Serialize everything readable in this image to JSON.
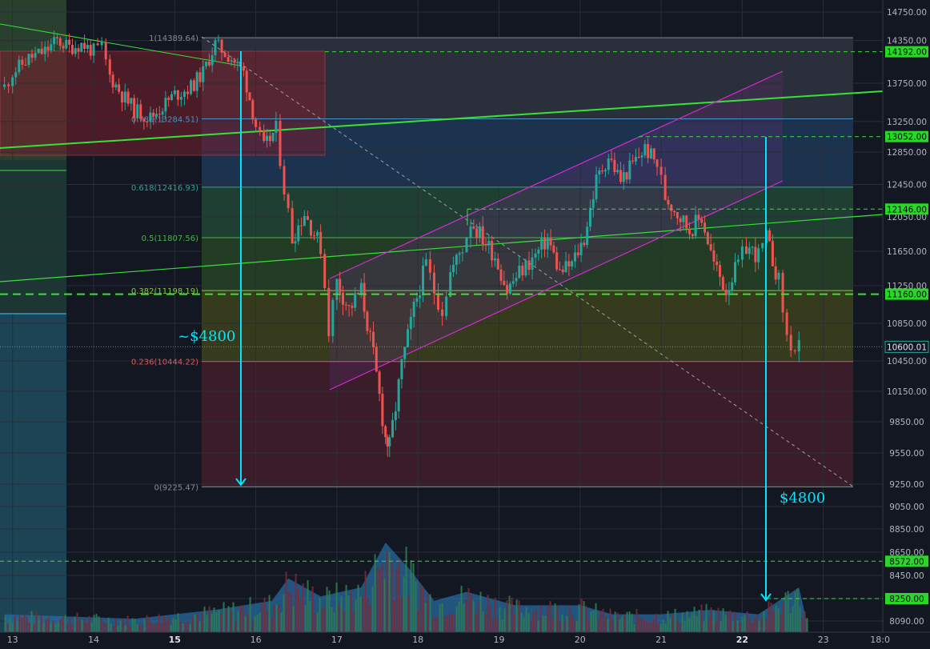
{
  "chart_data": {
    "type": "candlestick",
    "title": "",
    "x_labels": [
      "13",
      "14",
      "15",
      "16",
      "17",
      "18",
      "19",
      "20",
      "21",
      "22",
      "23",
      "18:0"
    ],
    "y_ticks": [
      14750,
      14350,
      13750,
      13250,
      12850,
      12450,
      12050,
      11650,
      11250,
      10850,
      10450,
      10150,
      9850,
      9550,
      9250,
      9050,
      8850,
      8650,
      8450,
      8250,
      8090
    ],
    "ylim": [
      8000,
      14900
    ],
    "fib_levels": [
      {
        "ratio": "1",
        "price": 14389.64,
        "label": "1(14389.64)"
      },
      {
        "ratio": "0.786",
        "price": 13284.51,
        "label": "0.786(13284.51)"
      },
      {
        "ratio": "0.618",
        "price": 12416.93,
        "label": "0.618(12416.93)"
      },
      {
        "ratio": "0.5",
        "price": 11807.56,
        "label": "0.5(11807.56)"
      },
      {
        "ratio": "0.382",
        "price": 11198.19,
        "label": "0.382(11198.19)"
      },
      {
        "ratio": "0.236",
        "price": 10444.22,
        "label": "0.236(10444.22)"
      },
      {
        "ratio": "0",
        "price": 9225.47,
        "label": "0(9225.47)"
      }
    ],
    "price_markers": [
      {
        "price": 14192.0,
        "label": "14192.00"
      },
      {
        "price": 13052.0,
        "label": "13052.00"
      },
      {
        "price": 12146.0,
        "label": "12146.00"
      },
      {
        "price": 11160.0,
        "label": "11160.00"
      },
      {
        "price": 10600.01,
        "label": "10600.01"
      },
      {
        "price": 8572.0,
        "label": "8572.00"
      },
      {
        "price": 8250.0,
        "label": "8250.00"
      }
    ],
    "annotations": [
      "~$4800",
      "$4800"
    ],
    "legend": "none",
    "grid": true,
    "close_path_day_price": [
      [
        12.9,
        13700
      ],
      [
        13.0,
        13900
      ],
      [
        13.2,
        14100
      ],
      [
        13.4,
        14200
      ],
      [
        13.55,
        14350
      ],
      [
        13.7,
        14250
      ],
      [
        13.85,
        14300
      ],
      [
        14.0,
        14200
      ],
      [
        14.1,
        14250
      ],
      [
        14.2,
        13850
      ],
      [
        14.35,
        13600
      ],
      [
        14.5,
        13400
      ],
      [
        14.7,
        13300
      ],
      [
        14.85,
        13450
      ],
      [
        15.0,
        13600
      ],
      [
        15.2,
        13700
      ],
      [
        15.35,
        13900
      ],
      [
        15.5,
        14300
      ],
      [
        15.7,
        14100
      ],
      [
        15.85,
        13900
      ],
      [
        16.0,
        13200
      ],
      [
        16.1,
        12900
      ],
      [
        16.25,
        13150
      ],
      [
        16.35,
        12400
      ],
      [
        16.45,
        11800
      ],
      [
        16.6,
        12100
      ],
      [
        16.8,
        11700
      ],
      [
        16.9,
        10800
      ],
      [
        17.0,
        11300
      ],
      [
        17.15,
        11000
      ],
      [
        17.3,
        11200
      ],
      [
        17.45,
        10500
      ],
      [
        17.6,
        9700
      ],
      [
        17.65,
        9600
      ],
      [
        17.8,
        10400
      ],
      [
        17.95,
        11000
      ],
      [
        18.1,
        11500
      ],
      [
        18.2,
        11200
      ],
      [
        18.3,
        11000
      ],
      [
        18.4,
        11400
      ],
      [
        18.55,
        11700
      ],
      [
        18.65,
        12000
      ],
      [
        18.8,
        11800
      ],
      [
        18.95,
        11600
      ],
      [
        19.1,
        11200
      ],
      [
        19.25,
        11400
      ],
      [
        19.45,
        11600
      ],
      [
        19.6,
        11800
      ],
      [
        19.75,
        11400
      ],
      [
        19.9,
        11500
      ],
      [
        20.05,
        11800
      ],
      [
        20.2,
        12500
      ],
      [
        20.35,
        12800
      ],
      [
        20.5,
        12500
      ],
      [
        20.65,
        12700
      ],
      [
        20.8,
        12900
      ],
      [
        20.95,
        12700
      ],
      [
        21.05,
        12300
      ],
      [
        21.2,
        12100
      ],
      [
        21.35,
        11900
      ],
      [
        21.5,
        12050
      ],
      [
        21.65,
        11500
      ],
      [
        21.8,
        11200
      ],
      [
        21.95,
        11500
      ],
      [
        22.05,
        11700
      ],
      [
        22.2,
        11600
      ],
      [
        22.3,
        11800
      ],
      [
        22.45,
        11300
      ],
      [
        22.55,
        10700
      ],
      [
        22.65,
        10550
      ],
      [
        22.75,
        10600
      ]
    ],
    "volume_series": {
      "name": "",
      "day_level": [
        [
          12.9,
          0.2
        ],
        [
          14.5,
          0.15
        ],
        [
          15.5,
          0.25
        ],
        [
          16.2,
          0.35
        ],
        [
          16.4,
          0.6
        ],
        [
          16.8,
          0.4
        ],
        [
          17.3,
          0.5
        ],
        [
          17.6,
          1.0
        ],
        [
          17.9,
          0.7
        ],
        [
          18.2,
          0.35
        ],
        [
          18.6,
          0.45
        ],
        [
          19.2,
          0.3
        ],
        [
          20.0,
          0.3
        ],
        [
          20.4,
          0.2
        ],
        [
          21.0,
          0.2
        ],
        [
          21.6,
          0.25
        ],
        [
          22.2,
          0.2
        ],
        [
          22.7,
          0.5
        ],
        [
          22.8,
          0.1
        ]
      ]
    }
  },
  "colors": {
    "bg": "#131722",
    "up": "#26a69a",
    "down": "#ef5350",
    "fib_line": "#4caf50",
    "trend": "#33dd33",
    "channel": "#d62ad6",
    "arrow": "#00e5ff",
    "marker_bg": "#27d827"
  },
  "annotations": {
    "left_move": "~$4800",
    "right_move": "$4800"
  }
}
